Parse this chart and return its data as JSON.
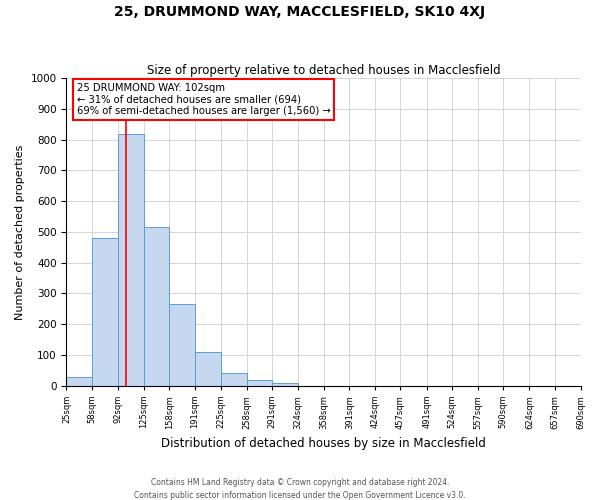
{
  "title": "25, DRUMMOND WAY, MACCLESFIELD, SK10 4XJ",
  "subtitle": "Size of property relative to detached houses in Macclesfield",
  "xlabel": "Distribution of detached houses by size in Macclesfield",
  "ylabel": "Number of detached properties",
  "footer_line1": "Contains HM Land Registry data © Crown copyright and database right 2024.",
  "footer_line2": "Contains public sector information licensed under the Open Government Licence v3.0.",
  "bin_edges": [
    25,
    58,
    92,
    125,
    158,
    191,
    225,
    258,
    291,
    324,
    358,
    391,
    424,
    457,
    491,
    524,
    557,
    590,
    624,
    657,
    690
  ],
  "bin_labels": [
    "25sqm",
    "58sqm",
    "92sqm",
    "125sqm",
    "158sqm",
    "191sqm",
    "225sqm",
    "258sqm",
    "291sqm",
    "324sqm",
    "358sqm",
    "391sqm",
    "424sqm",
    "457sqm",
    "491sqm",
    "524sqm",
    "557sqm",
    "590sqm",
    "624sqm",
    "657sqm",
    "690sqm"
  ],
  "bar_heights": [
    30,
    480,
    820,
    515,
    265,
    110,
    40,
    20,
    10,
    0,
    0,
    0,
    0,
    0,
    0,
    0,
    0,
    0,
    0,
    0
  ],
  "bar_color": "#c5d8f0",
  "bar_edge_color": "#5a9fd4",
  "vline_x": 102,
  "vline_color": "red",
  "ylim": [
    0,
    1000
  ],
  "yticks": [
    0,
    100,
    200,
    300,
    400,
    500,
    600,
    700,
    800,
    900,
    1000
  ],
  "annotation_box_text_line1": "25 DRUMMOND WAY: 102sqm",
  "annotation_box_text_line2": "← 31% of detached houses are smaller (694)",
  "annotation_box_text_line3": "69% of semi-detached houses are larger (1,560) →",
  "annotation_box_color": "red",
  "grid_color": "#d0d0d0",
  "background_color": "#ffffff"
}
